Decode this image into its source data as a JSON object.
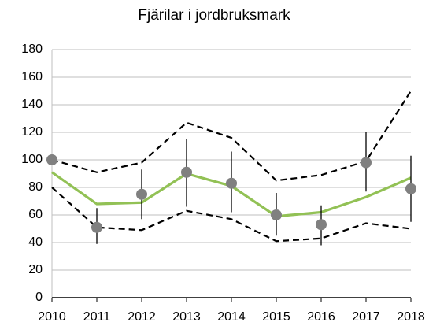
{
  "chart_data": {
    "type": "line",
    "title": "Fjärilar i jordbruksmark",
    "categories": [
      "2010",
      "2011",
      "2012",
      "2013",
      "2014",
      "2015",
      "2016",
      "2017",
      "2018"
    ],
    "ylim": [
      0,
      180
    ],
    "yticks": [
      0,
      20,
      40,
      60,
      80,
      100,
      120,
      140,
      160,
      180
    ],
    "grid": true,
    "series": [
      {
        "color": "#000000",
        "style": "dashed",
        "values": [
          100,
          91,
          98,
          127,
          116,
          85,
          89,
          99,
          150
        ]
      },
      {
        "color": "#000000",
        "style": "dashed",
        "values": [
          80,
          51,
          49,
          63,
          57,
          41,
          43,
          54,
          50
        ]
      },
      {
        "color": "#92c155",
        "style": "solid",
        "values": [
          91,
          68,
          69,
          90,
          81,
          59,
          62,
          73,
          87
        ]
      },
      {
        "color": "#808080",
        "style": "markers",
        "values": [
          100,
          51,
          75,
          91,
          83,
          60,
          53,
          98,
          79
        ],
        "lower": [
          null,
          39,
          57,
          66,
          62,
          45,
          38,
          77,
          55
        ],
        "upper": [
          null,
          65,
          93,
          115,
          106,
          76,
          67,
          120,
          103
        ]
      }
    ]
  }
}
